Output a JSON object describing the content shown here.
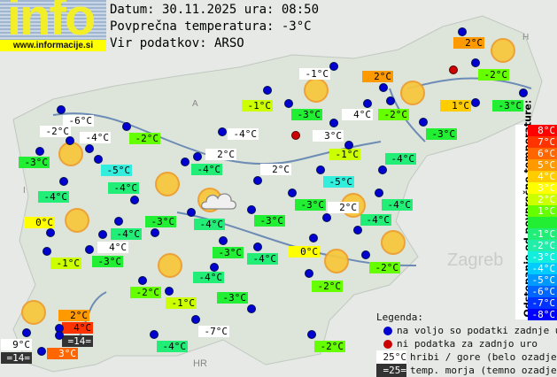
{
  "logo": {
    "text": "info",
    "url": "www.informacije.si"
  },
  "header": {
    "date_line": "Datum: 30.11.2025 ura: 08:50",
    "avg_line": "Povprečna temperatura: -3°C",
    "source_line": "Vir podatkov: ARSO"
  },
  "map_labels": {
    "zagreb": "Zagreb",
    "hr": "HR",
    "a": "A",
    "h": "H",
    "i": "I"
  },
  "stations": [
    {
      "t": "-6°C",
      "bg": "#ffffff"
    },
    {
      "t": "-2°C",
      "bg": "#ffffff"
    },
    {
      "t": "-4°C",
      "bg": "#ffffff"
    },
    {
      "t": "-3°C",
      "bg": "#22ee33"
    },
    {
      "t": "-2°C",
      "bg": "#66ff00"
    },
    {
      "t": "-5°C",
      "bg": "#33eedd"
    },
    {
      "t": "-4°C",
      "bg": "#22ee77"
    },
    {
      "t": "0°C",
      "bg": "#ffff00"
    },
    {
      "t": "-1°C",
      "bg": "#ccff00"
    },
    {
      "t": "-4°C",
      "bg": "#22ee77"
    },
    {
      "t": "4°C",
      "bg": "#ffffff"
    },
    {
      "t": "-3°C",
      "bg": "#22ee33"
    },
    {
      "t": "-4°C",
      "bg": "#22ee77"
    },
    {
      "t": "-4°C",
      "bg": "#ffffff"
    },
    {
      "t": "2°C",
      "bg": "#ffffff"
    },
    {
      "t": "-4°C",
      "bg": "#22ee77"
    },
    {
      "t": "2°C",
      "bg": "#ffffff"
    },
    {
      "t": "-4°C",
      "bg": "#22ee77"
    },
    {
      "t": "-3°C",
      "bg": "#22ee33"
    },
    {
      "t": "-3°C",
      "bg": "#22ee33"
    },
    {
      "t": "-3°C",
      "bg": "#22ee33"
    },
    {
      "t": "-4°C",
      "bg": "#22ee77"
    },
    {
      "t": "-4°C",
      "bg": "#22ee77"
    },
    {
      "t": "-1°C",
      "bg": "#ccff00"
    },
    {
      "t": "-1°C",
      "bg": "#ffffff"
    },
    {
      "t": "-3°C",
      "bg": "#22ee33"
    },
    {
      "t": "3°C",
      "bg": "#ffffff"
    },
    {
      "t": "4°C",
      "bg": "#ffffff"
    },
    {
      "t": "2°C",
      "bg": "#ff9900"
    },
    {
      "t": "-2°C",
      "bg": "#66ff00"
    },
    {
      "t": "-3°C",
      "bg": "#22ee33"
    },
    {
      "t": "-1°C",
      "bg": "#ccff00"
    },
    {
      "t": "-4°C",
      "bg": "#22ee77"
    },
    {
      "t": "-5°C",
      "bg": "#33eedd"
    },
    {
      "t": "2°C",
      "bg": "#ff9900"
    },
    {
      "t": "-2°C",
      "bg": "#66ff00"
    },
    {
      "t": "1°C",
      "bg": "#ffcc00"
    },
    {
      "t": "-3°C",
      "bg": "#22ee33"
    },
    {
      "t": "-3°C",
      "bg": "#22ee33"
    },
    {
      "t": "2°C",
      "bg": "#ffffff"
    },
    {
      "t": "-4°C",
      "bg": "#22ee77"
    },
    {
      "t": "-4°C",
      "bg": "#22ee77"
    },
    {
      "t": "0°C",
      "bg": "#ffff00"
    },
    {
      "t": "-2°C",
      "bg": "#66ff00"
    },
    {
      "t": "-2°C",
      "bg": "#66ff00"
    },
    {
      "t": "-2°C",
      "bg": "#66ff00"
    },
    {
      "t": "-1°C",
      "bg": "#ccff00"
    },
    {
      "t": "-3°C",
      "bg": "#22ee33"
    },
    {
      "t": "-7°C",
      "bg": "#ffffff"
    },
    {
      "t": "-4°C",
      "bg": "#22ee77"
    },
    {
      "t": "-2°C",
      "bg": "#66ff00"
    },
    {
      "t": "2°C",
      "bg": "#ff9900"
    },
    {
      "t": "4°C",
      "bg": "#ff3300"
    },
    {
      "t": "=14=",
      "bg": "#333333",
      "fg": "#ffffff"
    },
    {
      "t": "9°C",
      "bg": "#ffffff"
    },
    {
      "t": "=14=",
      "bg": "#333333",
      "fg": "#ffffff"
    },
    {
      "t": "3°C",
      "bg": "#ff6600",
      "fg": "#ffffff"
    }
  ],
  "dot_colors": {
    "available": "#0000d0",
    "missing": "#cc0000"
  },
  "scale": {
    "title": "Odstopanje od povprečne temperature:",
    "rows": [
      {
        "t": "8°C",
        "c": "#ff0000"
      },
      {
        "t": "7°C",
        "c": "#ff3300"
      },
      {
        "t": "6°C",
        "c": "#ff6600"
      },
      {
        "t": "5°C",
        "c": "#ff9900"
      },
      {
        "t": "4°C",
        "c": "#ffcc00"
      },
      {
        "t": "3°C",
        "c": "#ffff00"
      },
      {
        "t": "2°C",
        "c": "#ccff00"
      },
      {
        "t": "1°C",
        "c": "#66ff00"
      },
      {
        "t": "",
        "c": "#22ee33"
      },
      {
        "t": "-1°C",
        "c": "#22ee77"
      },
      {
        "t": "-2°C",
        "c": "#22eeaa"
      },
      {
        "t": "-3°C",
        "c": "#11eedd"
      },
      {
        "t": "-4°C",
        "c": "#00ccff"
      },
      {
        "t": "-5°C",
        "c": "#0099ff"
      },
      {
        "t": "-6°C",
        "c": "#0066ff"
      },
      {
        "t": "-7°C",
        "c": "#0033ff"
      },
      {
        "t": "-8°C",
        "c": "#0000ff"
      }
    ]
  },
  "legend": {
    "title": "Legenda:",
    "available": "na voljo so podatki zadnje ure",
    "missing": "ni podatka za zadnjo uro",
    "mountain_sample": "25°C",
    "mountain": "hribi / gore (belo ozadje)",
    "sea_sample": "=25=",
    "sea": "temp. morja (temno ozadje)"
  }
}
